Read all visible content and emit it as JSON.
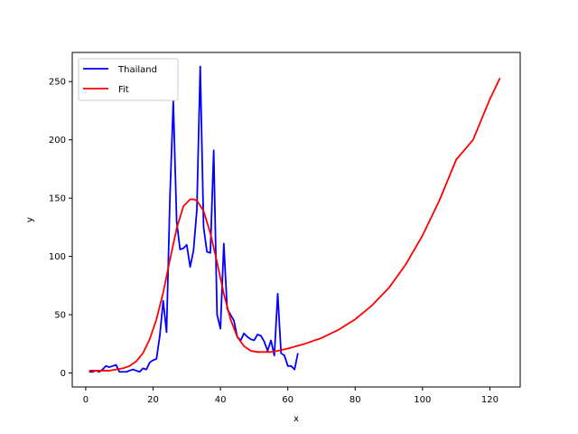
{
  "chart_data": {
    "type": "line",
    "title": "",
    "xlabel": "x",
    "ylabel": "y",
    "xlim": [
      -4,
      129
    ],
    "ylim": [
      -12,
      275
    ],
    "xticks": [
      0,
      20,
      40,
      60,
      80,
      100,
      120
    ],
    "yticks": [
      0,
      50,
      100,
      150,
      200,
      250
    ],
    "grid": false,
    "legend_position": "upper-left",
    "series": [
      {
        "name": "Thailand",
        "color": "#0000ff",
        "x": [
          1,
          2,
          3,
          4,
          5,
          6,
          7,
          8,
          9,
          10,
          11,
          12,
          13,
          14,
          15,
          16,
          17,
          18,
          19,
          20,
          21,
          22,
          23,
          24,
          25,
          26,
          27,
          28,
          29,
          30,
          31,
          32,
          33,
          34,
          35,
          36,
          37,
          38,
          39,
          40,
          41,
          42,
          43,
          44,
          45,
          46,
          47,
          48,
          49,
          50,
          51,
          52,
          53,
          54,
          55,
          56,
          57,
          58,
          59,
          60,
          61,
          62,
          63
        ],
        "y": [
          1,
          1,
          2,
          1,
          3,
          6,
          5,
          6,
          7,
          1,
          1,
          1,
          2,
          3,
          2,
          1,
          4,
          3,
          9,
          11,
          12,
          32,
          62,
          35,
          150,
          233,
          130,
          106,
          107,
          110,
          91,
          105,
          140,
          263,
          125,
          104,
          103,
          191,
          50,
          38,
          111,
          55,
          50,
          45,
          31,
          28,
          34,
          31,
          29,
          28,
          33,
          32,
          27,
          19,
          28,
          15,
          68,
          17,
          15,
          6,
          6,
          3,
          17
        ]
      },
      {
        "name": "Fit",
        "color": "#ff0000",
        "x": [
          1,
          3,
          5,
          7,
          9,
          11,
          13,
          15,
          17,
          19,
          21,
          23,
          25,
          27,
          29,
          31,
          32,
          33,
          35,
          37,
          39,
          41,
          43,
          45,
          47,
          49,
          51,
          53,
          55,
          57,
          60,
          65,
          70,
          75,
          80,
          85,
          90,
          95,
          100,
          105,
          110,
          115,
          120,
          123
        ],
        "y": [
          2,
          2,
          2,
          2,
          3,
          4,
          6,
          10,
          17,
          29,
          46,
          69,
          97,
          124,
          143,
          149,
          149,
          148,
          139,
          120,
          95,
          68,
          46,
          31,
          23,
          19,
          18,
          18,
          18,
          19,
          21,
          25,
          30,
          37,
          46,
          58,
          73,
          93,
          118,
          148,
          183,
          200,
          235,
          253
        ]
      }
    ]
  }
}
